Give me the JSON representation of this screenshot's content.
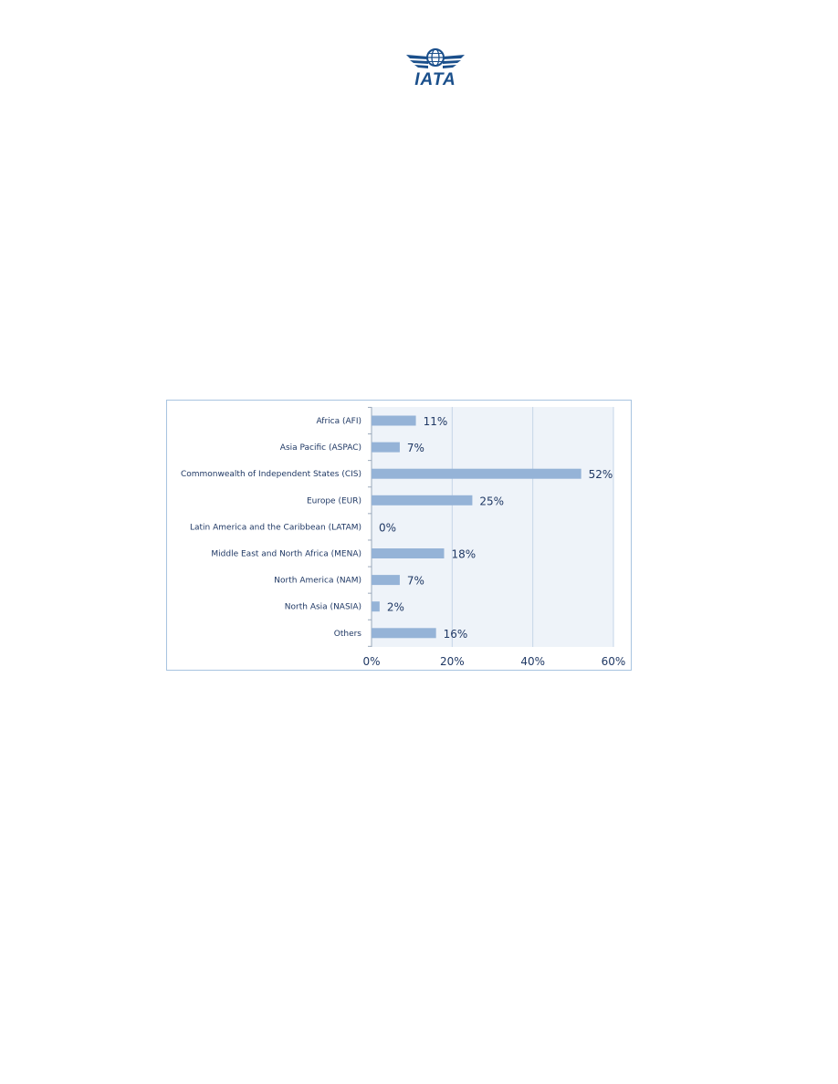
{
  "header": {
    "logo_text": "IATA",
    "brand_color": "#1a4f8b"
  },
  "chart_data": {
    "type": "bar",
    "orientation": "horizontal",
    "categories": [
      "Africa (AFI)",
      "Asia Pacific (ASPAC)",
      "Commonwealth of Independent States (CIS)",
      "Europe (EUR)",
      "Latin America and the Caribbean (LATAM)",
      "Middle East and North Africa (MENA)",
      "North America (NAM)",
      "North Asia (NASIA)",
      "Others"
    ],
    "values": [
      11,
      7,
      52,
      25,
      0,
      18,
      7,
      2,
      16
    ],
    "data_labels": [
      "11%",
      "7%",
      "52%",
      "25%",
      "0%",
      "18%",
      "7%",
      "2%",
      "16%"
    ],
    "x_ticks": [
      "0%",
      "20%",
      "40%",
      "60%"
    ],
    "xlim": [
      0,
      60
    ],
    "title": "",
    "xlabel": "",
    "ylabel": "",
    "grid": true,
    "colors": {
      "bar": "#95b3d7",
      "plot_bg": "#eef3f9",
      "gridline": "#c5d5e8",
      "text": "#1f3864",
      "border": "#a8c4e0"
    }
  }
}
